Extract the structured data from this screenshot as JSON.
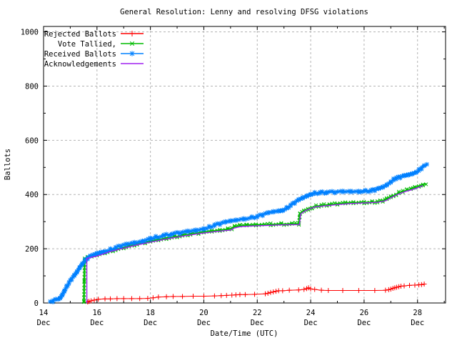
{
  "chart_data": {
    "type": "line",
    "title": "General Resolution: Lenny and resolving DFSG violations",
    "xlabel": "Date/Time (UTC)",
    "ylabel": "Ballots",
    "xlim": [
      14,
      29.05
    ],
    "ylim": [
      0,
      1020
    ],
    "grid": true,
    "grid_color": "#b3b3b3",
    "border_color": "#000000",
    "legend_position": "top-left-inside",
    "xticks": [
      {
        "v": 14,
        "line1": "14",
        "line2": "Dec"
      },
      {
        "v": 16,
        "line1": "16",
        "line2": "Dec"
      },
      {
        "v": 18,
        "line1": "18",
        "line2": "Dec"
      },
      {
        "v": 20,
        "line1": "20",
        "line2": "Dec"
      },
      {
        "v": 22,
        "line1": "22",
        "line2": "Dec"
      },
      {
        "v": 24,
        "line1": "24",
        "line2": "Dec"
      },
      {
        "v": 26,
        "line1": "26",
        "line2": "Dec"
      },
      {
        "v": 28,
        "line1": "28",
        "line2": "Dec"
      }
    ],
    "yticks": [
      0,
      200,
      400,
      600,
      800,
      1000
    ],
    "series": [
      {
        "name": "Rejected Ballots",
        "color": "#ff0000",
        "marker": "plus",
        "marker_size": 3.5,
        "dense": false,
        "line_width": 1,
        "points": [
          [
            15.65,
            4
          ],
          [
            15.7,
            6
          ],
          [
            15.78,
            8
          ],
          [
            15.9,
            11
          ],
          [
            16.05,
            14
          ],
          [
            16.3,
            15
          ],
          [
            16.5,
            15
          ],
          [
            16.75,
            16
          ],
          [
            17.0,
            16
          ],
          [
            17.3,
            16
          ],
          [
            17.6,
            16
          ],
          [
            17.9,
            17
          ],
          [
            18.1,
            19
          ],
          [
            18.3,
            22
          ],
          [
            18.6,
            23
          ],
          [
            18.85,
            24
          ],
          [
            19.2,
            24
          ],
          [
            19.6,
            25
          ],
          [
            20.0,
            25
          ],
          [
            20.4,
            26
          ],
          [
            20.65,
            27
          ],
          [
            20.85,
            28
          ],
          [
            21.05,
            29
          ],
          [
            21.2,
            30
          ],
          [
            21.35,
            31
          ],
          [
            21.55,
            31
          ],
          [
            21.9,
            32
          ],
          [
            22.3,
            34
          ],
          [
            22.4,
            36
          ],
          [
            22.5,
            39
          ],
          [
            22.6,
            41
          ],
          [
            22.7,
            43
          ],
          [
            22.8,
            45
          ],
          [
            22.95,
            45
          ],
          [
            23.2,
            47
          ],
          [
            23.55,
            48
          ],
          [
            23.75,
            50
          ],
          [
            23.85,
            53
          ],
          [
            23.92,
            56
          ],
          [
            24.0,
            52
          ],
          [
            24.15,
            50
          ],
          [
            24.4,
            47
          ],
          [
            24.66,
            46
          ],
          [
            25.2,
            46
          ],
          [
            25.8,
            46
          ],
          [
            26.4,
            46
          ],
          [
            26.8,
            47
          ],
          [
            26.92,
            49
          ],
          [
            27.0,
            51
          ],
          [
            27.08,
            54
          ],
          [
            27.15,
            56
          ],
          [
            27.22,
            58
          ],
          [
            27.3,
            60
          ],
          [
            27.38,
            62
          ],
          [
            27.5,
            63
          ],
          [
            27.7,
            65
          ],
          [
            27.9,
            66
          ],
          [
            28.05,
            67
          ],
          [
            28.15,
            68
          ],
          [
            28.25,
            70
          ]
        ]
      },
      {
        "name": "Vote Tallied,",
        "color": "#00bb00",
        "marker": "cross",
        "marker_size": 3,
        "dense": true,
        "step": 4.0,
        "line_width": 1.8,
        "points": [
          [
            15.51,
            0
          ],
          [
            15.54,
            162
          ],
          [
            15.65,
            167
          ],
          [
            15.8,
            171
          ],
          [
            16.0,
            176
          ],
          [
            16.3,
            185
          ],
          [
            16.6,
            194
          ],
          [
            16.9,
            202
          ],
          [
            17.2,
            210
          ],
          [
            17.5,
            217
          ],
          [
            17.8,
            223
          ],
          [
            18.0,
            227
          ],
          [
            18.3,
            233
          ],
          [
            18.6,
            239
          ],
          [
            18.9,
            244
          ],
          [
            19.2,
            249
          ],
          [
            19.5,
            254
          ],
          [
            19.8,
            258
          ],
          [
            20.0,
            261
          ],
          [
            20.3,
            265
          ],
          [
            20.6,
            269
          ],
          [
            20.9,
            272
          ],
          [
            21.05,
            275
          ],
          [
            21.15,
            281
          ],
          [
            21.35,
            285
          ],
          [
            21.6,
            287
          ],
          [
            21.95,
            288
          ],
          [
            22.5,
            290
          ],
          [
            22.9,
            291
          ],
          [
            23.3,
            292
          ],
          [
            23.56,
            292
          ],
          [
            23.6,
            331
          ],
          [
            23.75,
            339
          ],
          [
            23.9,
            346
          ],
          [
            24.05,
            352
          ],
          [
            24.2,
            357
          ],
          [
            24.4,
            360
          ],
          [
            24.7,
            363
          ],
          [
            25.0,
            366
          ],
          [
            25.3,
            368
          ],
          [
            25.6,
            370
          ],
          [
            26.0,
            371
          ],
          [
            26.3,
            372
          ],
          [
            26.5,
            373
          ],
          [
            26.7,
            377
          ],
          [
            26.85,
            383
          ],
          [
            27.0,
            391
          ],
          [
            27.1,
            396
          ],
          [
            27.2,
            401
          ],
          [
            27.3,
            407
          ],
          [
            27.45,
            412
          ],
          [
            27.6,
            416
          ],
          [
            27.75,
            420
          ],
          [
            27.9,
            426
          ],
          [
            28.05,
            431
          ],
          [
            28.2,
            437
          ],
          [
            28.32,
            440
          ]
        ]
      },
      {
        "name": "Received Ballots",
        "color": "#0080ff",
        "marker": "star",
        "marker_size": 3.2,
        "dense": true,
        "step": 3.4,
        "line_width": 1.5,
        "points": [
          [
            14.25,
            2
          ],
          [
            14.35,
            7
          ],
          [
            14.45,
            11
          ],
          [
            14.55,
            13
          ],
          [
            14.62,
            18
          ],
          [
            14.7,
            30
          ],
          [
            14.78,
            46
          ],
          [
            14.86,
            60
          ],
          [
            14.95,
            74
          ],
          [
            15.05,
            88
          ],
          [
            15.15,
            100
          ],
          [
            15.25,
            114
          ],
          [
            15.35,
            131
          ],
          [
            15.45,
            146
          ],
          [
            15.55,
            157
          ],
          [
            15.65,
            165
          ],
          [
            15.75,
            171
          ],
          [
            15.85,
            176
          ],
          [
            16.0,
            182
          ],
          [
            16.15,
            187
          ],
          [
            16.3,
            191
          ],
          [
            16.5,
            197
          ],
          [
            16.7,
            204
          ],
          [
            16.9,
            210
          ],
          [
            17.1,
            215
          ],
          [
            17.4,
            221
          ],
          [
            17.7,
            227
          ],
          [
            18.0,
            238
          ],
          [
            18.2,
            243
          ],
          [
            18.5,
            249
          ],
          [
            18.8,
            254
          ],
          [
            19.1,
            259
          ],
          [
            19.4,
            263
          ],
          [
            19.7,
            268
          ],
          [
            20.0,
            274
          ],
          [
            20.2,
            280
          ],
          [
            20.4,
            287
          ],
          [
            20.6,
            292
          ],
          [
            20.8,
            297
          ],
          [
            21.0,
            302
          ],
          [
            21.2,
            306
          ],
          [
            21.5,
            311
          ],
          [
            21.8,
            315
          ],
          [
            22.0,
            319
          ],
          [
            22.2,
            325
          ],
          [
            22.4,
            331
          ],
          [
            22.6,
            336
          ],
          [
            22.8,
            340
          ],
          [
            22.95,
            343
          ],
          [
            23.1,
            350
          ],
          [
            23.25,
            360
          ],
          [
            23.4,
            370
          ],
          [
            23.55,
            379
          ],
          [
            23.7,
            387
          ],
          [
            23.85,
            395
          ],
          [
            24.0,
            402
          ],
          [
            24.15,
            405
          ],
          [
            24.35,
            407
          ],
          [
            24.6,
            408
          ],
          [
            24.9,
            409
          ],
          [
            25.2,
            410
          ],
          [
            25.5,
            411
          ],
          [
            25.8,
            412
          ],
          [
            26.05,
            413
          ],
          [
            26.25,
            414
          ],
          [
            26.4,
            417
          ],
          [
            26.55,
            421
          ],
          [
            26.7,
            427
          ],
          [
            26.85,
            436
          ],
          [
            27.0,
            448
          ],
          [
            27.1,
            455
          ],
          [
            27.2,
            460
          ],
          [
            27.35,
            464
          ],
          [
            27.5,
            468
          ],
          [
            27.65,
            472
          ],
          [
            27.8,
            477
          ],
          [
            27.95,
            484
          ],
          [
            28.05,
            490
          ],
          [
            28.15,
            497
          ],
          [
            28.25,
            504
          ],
          [
            28.35,
            509
          ]
        ]
      },
      {
        "name": "Acknowledgements",
        "color": "#a020f0",
        "marker": "none",
        "marker_size": 0,
        "dense": false,
        "line_width": 1.4,
        "points": [
          [
            15.62,
            0
          ],
          [
            15.62,
            164
          ],
          [
            15.8,
            169
          ],
          [
            16.0,
            173
          ],
          [
            16.5,
            190
          ],
          [
            17.0,
            202
          ],
          [
            17.5,
            214
          ],
          [
            18.0,
            224
          ],
          [
            18.5,
            234
          ],
          [
            19.0,
            243
          ],
          [
            19.5,
            251
          ],
          [
            20.0,
            258
          ],
          [
            20.5,
            264
          ],
          [
            21.0,
            269
          ],
          [
            21.15,
            277
          ],
          [
            21.4,
            282
          ],
          [
            22.0,
            285
          ],
          [
            22.6,
            287
          ],
          [
            23.2,
            289
          ],
          [
            23.58,
            289
          ],
          [
            23.62,
            328
          ],
          [
            23.8,
            340
          ],
          [
            24.0,
            349
          ],
          [
            24.2,
            355
          ],
          [
            24.5,
            358
          ],
          [
            25.0,
            363
          ],
          [
            25.5,
            367
          ],
          [
            26.0,
            369
          ],
          [
            26.5,
            371
          ],
          [
            26.8,
            377
          ],
          [
            27.0,
            388
          ],
          [
            27.2,
            398
          ],
          [
            27.4,
            406
          ],
          [
            27.6,
            413
          ],
          [
            27.8,
            418
          ],
          [
            28.0,
            425
          ],
          [
            28.2,
            433
          ]
        ]
      }
    ]
  }
}
